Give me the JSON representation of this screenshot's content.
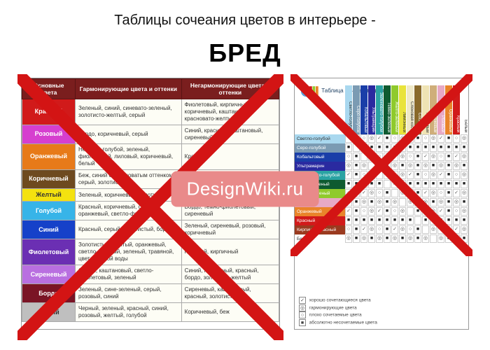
{
  "title": "Таблицы сочеания цветов в интерьере -",
  "subtitle": "БРЕД",
  "watermark": "DesignWiki.ru",
  "cross_color": "#d31414",
  "left_table": {
    "headers": [
      "Основные цвета",
      "Гармонирующие цвета и оттенки",
      "Негармонирующие цвета и оттенки"
    ],
    "rows": [
      {
        "name": "Красный",
        "bg": "#d11a1a",
        "fg": "#ffffff",
        "h": "Зеленый, синий, синевато-зеленый, золотисто-желтый, серый",
        "n": "Фиолетовый, кирпичный, коричневый, каштановый, красновато-желтый"
      },
      {
        "name": "Розовый",
        "bg": "#d63fcf",
        "fg": "#ffffff",
        "h": "Бордо, коричневый, серый",
        "n": "Синий, красный, каштановый, сиреневый"
      },
      {
        "name": "Оранжевый",
        "bg": "#e77a19",
        "fg": "#ffffff",
        "h": "Небесно-голубой, зеленый, фиолетовый, лиловый, коричневый, белый",
        "n": "Красный"
      },
      {
        "name": "Коричневый",
        "bg": "#6e4a1f",
        "fg": "#ffffff",
        "h": "Беж, синий с зеленоватым оттенком, серый, золотистый",
        "n": "Бордо, каштановый, сиреневый, розовый"
      },
      {
        "name": "Желтый",
        "bg": "#f4e20f",
        "fg": "#333333",
        "h": "Зеленый, коричневый, золотистый",
        "n": "Бордо, розовый"
      },
      {
        "name": "Голубой",
        "bg": "#37b4e8",
        "fg": "#ffffff",
        "h": "Красный, коричневый, синий, оранжевый, светло-фиолетовый",
        "n": "Бордо, темно-фиолетовый, сиреневый"
      },
      {
        "name": "Синий",
        "bg": "#1641c9",
        "fg": "#ffffff",
        "h": "Красный, серый, золотистый, бордо",
        "n": "Зеленый, сиреневый, розовый, коричневый"
      },
      {
        "name": "Фиолетовый",
        "bg": "#6b2fb3",
        "fg": "#ffffff",
        "h": "Золотистый, желтый, оранжевый, светло-зеленый, зеленый, травяной, цвет морской воды",
        "n": "Красный, кирпичный"
      },
      {
        "name": "Сиреневый",
        "bg": "#b96fe0",
        "fg": "#ffffff",
        "h": "Серый, каштановый, светло-фиолетовый, зеленый",
        "n": "Синий, кирпичный, красный, бордо, золотисто-желтый"
      },
      {
        "name": "Бордо",
        "bg": "#7a1425",
        "fg": "#ffffff",
        "h": "Зеленый, сине-зеленый, серый, розовый, синий",
        "n": "Сиреневый, каштановый, красный, золотистый"
      },
      {
        "name": "Серый",
        "bg": "#bfbfbf",
        "fg": "#333333",
        "h": "Черный, зеленый, красный, синий, розовый, желтый, голубой",
        "n": "Коричневый, беж"
      }
    ]
  },
  "right_matrix": {
    "title": "Таблица сочетания цветов",
    "columns": [
      {
        "label": "Светло-голубой",
        "bg": "#a9d8ef"
      },
      {
        "label": "Серо-голубой",
        "bg": "#7b9bb3"
      },
      {
        "label": "Кобальтовый",
        "bg": "#1a3ea8"
      },
      {
        "label": "Ультрамарин",
        "bg": "#2a2aa0"
      },
      {
        "label": "Зеленовато-голубой",
        "bg": "#2aa3a3"
      },
      {
        "label": "Темно-зеленый",
        "bg": "#0e5a30"
      },
      {
        "label": "Желто-зеленый",
        "bg": "#8fca2c"
      },
      {
        "label": "Лимонный",
        "bg": "#e9e33b"
      },
      {
        "label": "Слоновая кость",
        "bg": "#efe9c8"
      },
      {
        "label": "Сосновый",
        "bg": "#8a6a2b"
      },
      {
        "label": "Кремовый",
        "bg": "#efe3b4"
      },
      {
        "label": "Бежевый",
        "bg": "#cfae7a"
      },
      {
        "label": "Розовый",
        "bg": "#e7a9c5"
      },
      {
        "label": "Оранжевый",
        "bg": "#e9842a"
      },
      {
        "label": "Красный",
        "bg": "#d11a1a"
      },
      {
        "label": "Белый",
        "bg": "#ffffff"
      }
    ],
    "rows": [
      {
        "label": "Светло-голубой",
        "bg": "#a9d8ef"
      },
      {
        "label": "Серо-голубой",
        "bg": "#7b9bb3"
      },
      {
        "label": "Кобальтовый",
        "bg": "#1a3ea8"
      },
      {
        "label": "Ультрамарин",
        "bg": "#2a2aa0"
      },
      {
        "label": "Зеленовато-голубой",
        "bg": "#2aa3a3"
      },
      {
        "label": "Темно-зеленый",
        "bg": "#0e5a30"
      },
      {
        "label": "Желто-зеленый",
        "bg": "#8fca2c"
      },
      {
        "label": "Розовый",
        "bg": "#e7a9c5"
      },
      {
        "label": "Оранжевый",
        "bg": "#e9842a"
      },
      {
        "label": "Красный",
        "bg": "#d11a1a"
      },
      {
        "label": "Кирпично-красный",
        "bg": "#9a3a1f"
      },
      {
        "label": "Белый",
        "bg": "#ffffff"
      }
    ],
    "legend": [
      {
        "sym": "✓",
        "text": "хорошо сочетающиеся цвета"
      },
      {
        "sym": "◎",
        "text": "гармонирующие цвета"
      },
      {
        "sym": "○",
        "text": "плохо сочетаемые цвета"
      },
      {
        "sym": "■",
        "text": "абсолютно несочетаемые цвета"
      }
    ],
    "symbols": [
      "✓",
      "◎",
      "○",
      "■"
    ]
  }
}
